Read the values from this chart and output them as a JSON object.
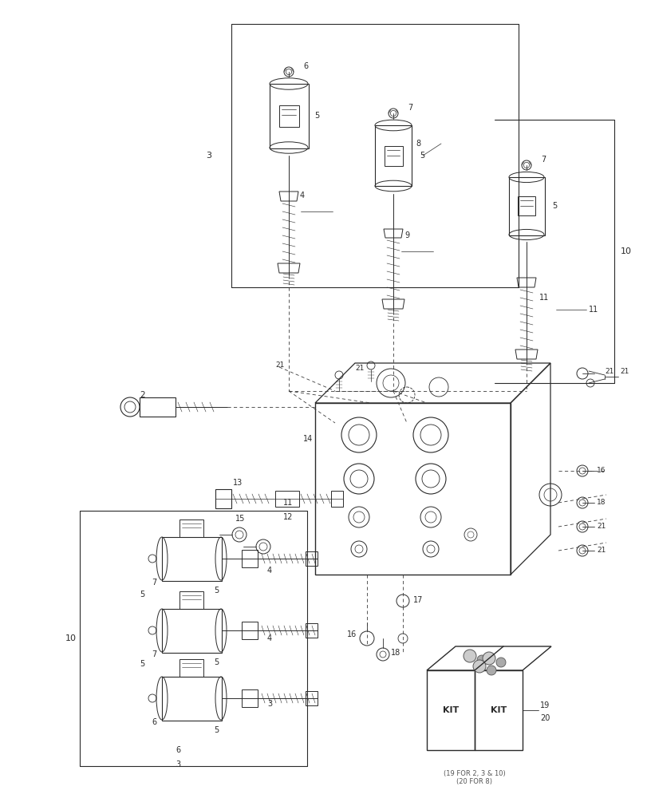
{
  "bg_color": "#ffffff",
  "line_color": "#2a2a2a",
  "dashed_color": "#3a3a3a",
  "label_color": "#2a2a2a",
  "figsize": [
    8.12,
    10.0
  ],
  "dpi": 100,
  "note_text": "(19 FOR 2, 3 & 10)\n(20 FOR 8)"
}
